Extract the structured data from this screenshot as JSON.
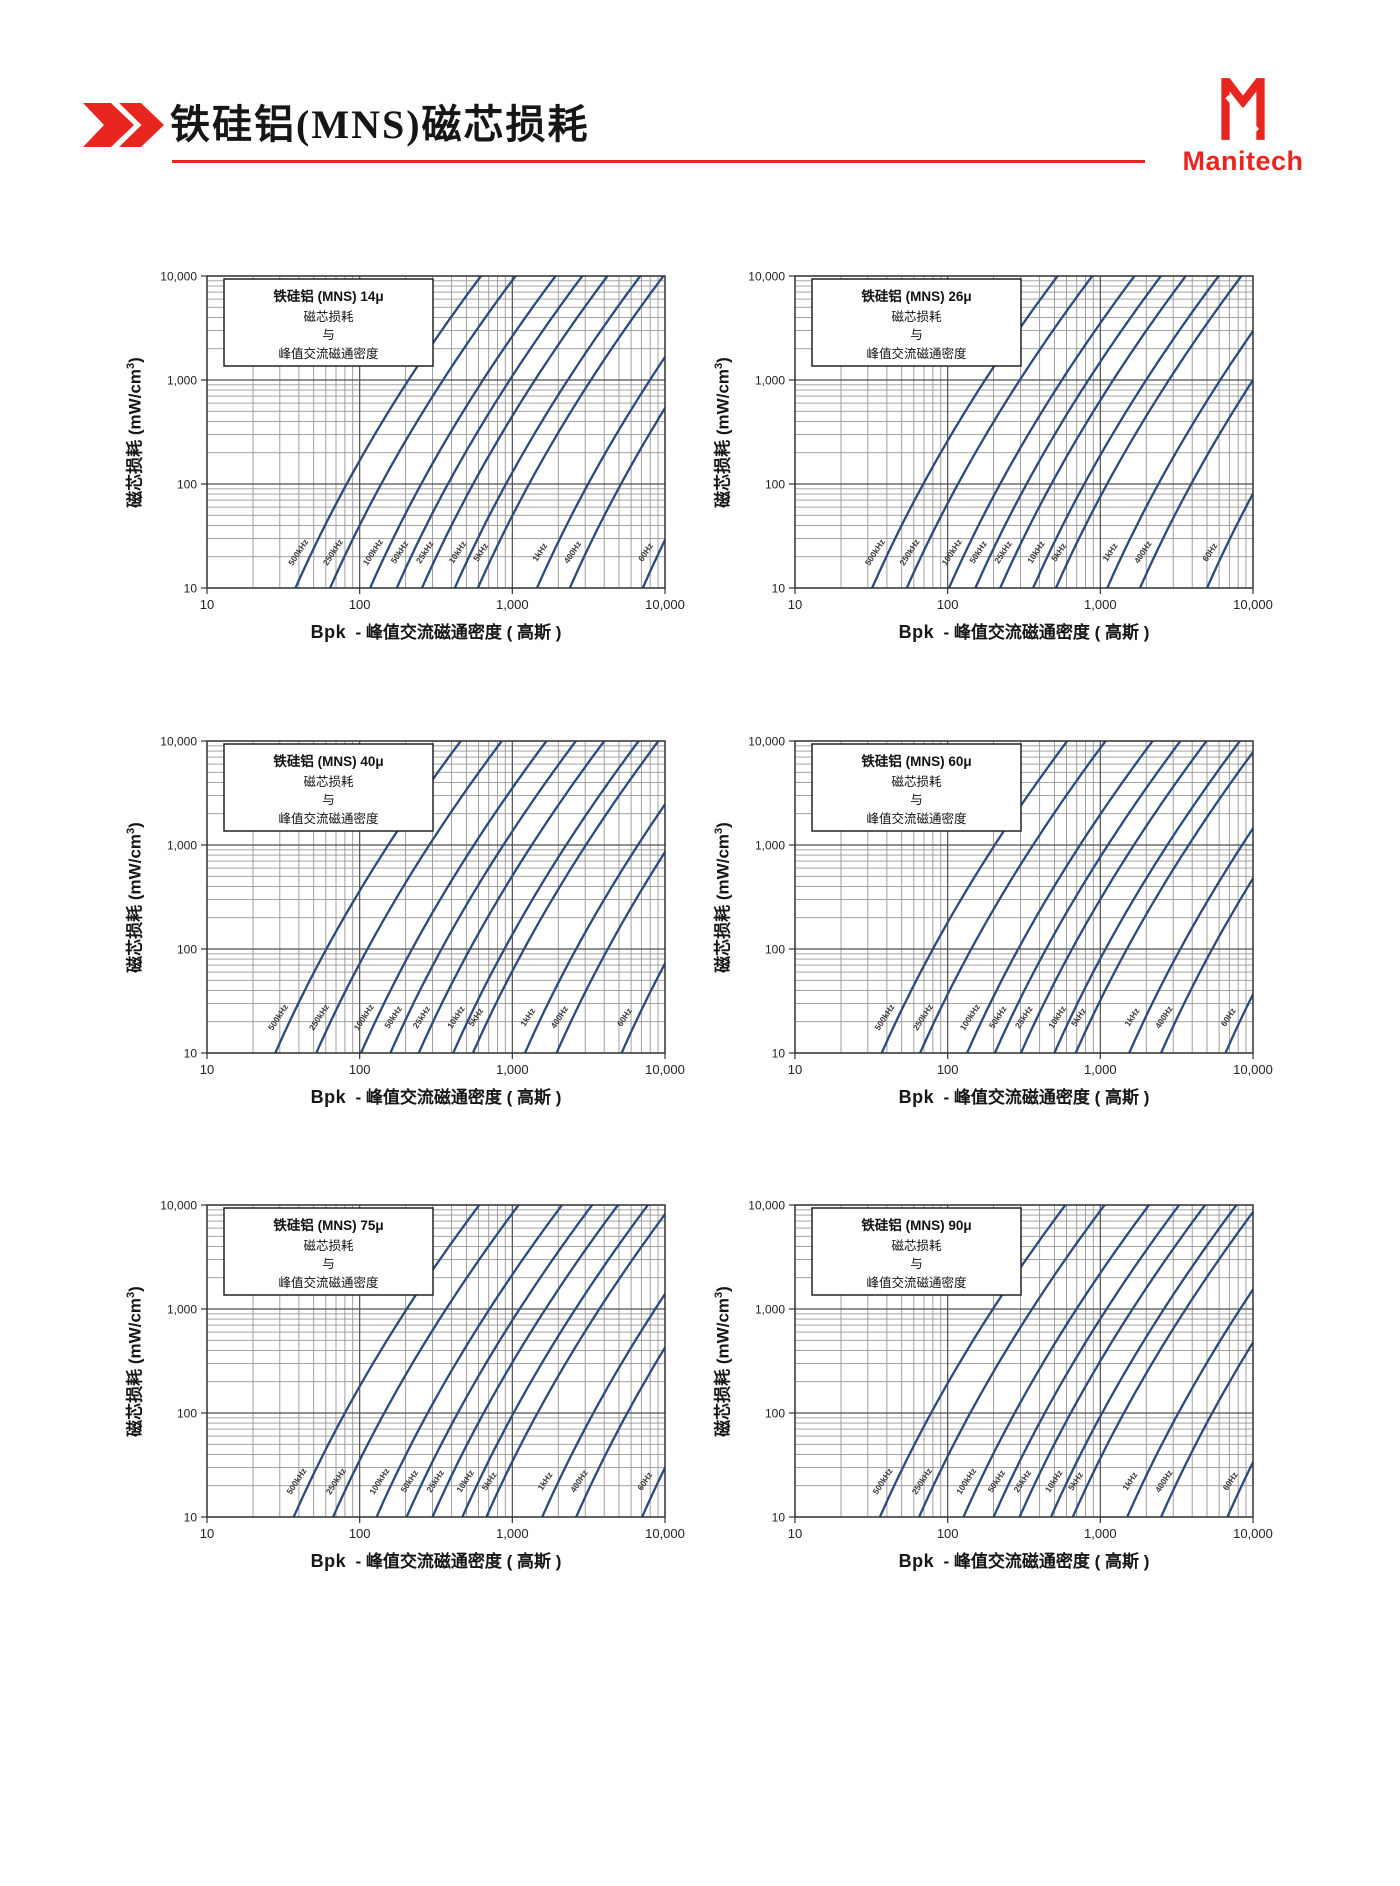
{
  "header": {
    "title": "铁硅铝(MNS)磁芯损耗",
    "brand": "Manitech"
  },
  "axes": {
    "scale": "log-log",
    "x_label_bpk": "Bpk",
    "x_label_rest": "- 峰值交流磁通密度 ( 高斯 )",
    "y_label": "磁芯损耗 (mW/cm³)",
    "y_label_cn": "磁芯损耗",
    "y_label_unit_pre": "(mW/cm",
    "y_label_unit_sup": "3",
    "y_label_unit_post": ")",
    "x_ticks": [
      "10",
      "100",
      "1,000",
      "10,000"
    ],
    "y_ticks": [
      "10",
      "100",
      "1,000",
      "10,000"
    ],
    "x_range_gauss": [
      10,
      10000
    ],
    "y_range_mw_cm3": [
      10,
      10000
    ]
  },
  "title_box_lines": [
    "磁芯损耗",
    "与",
    "峰值交流磁通密度"
  ],
  "curve_model": {
    "note": "straight-ish power-law curves on log-log axes; logB = log10(B_gauss_at_P10) + 0.30*(logP-1) + 0.035*(logP-1)^2 for P in mW/cm3 from 10 to 10,000"
  },
  "chart_data": [
    {
      "type": "line",
      "mu": "14μ",
      "title_line1": "铁硅铝 (MNS)  14μ",
      "series": [
        {
          "freq": "500kHz",
          "B_gauss_at_P10": 38
        },
        {
          "freq": "250kHz",
          "B_gauss_at_P10": 64
        },
        {
          "freq": "100kHz",
          "B_gauss_at_P10": 117
        },
        {
          "freq": "50kHz",
          "B_gauss_at_P10": 175
        },
        {
          "freq": "25kHz",
          "B_gauss_at_P10": 256
        },
        {
          "freq": "10kHz",
          "B_gauss_at_P10": 420
        },
        {
          "freq": "5kHz",
          "B_gauss_at_P10": 595
        },
        {
          "freq": "1kHz",
          "B_gauss_at_P10": 1450
        },
        {
          "freq": "400Hz",
          "B_gauss_at_P10": 2380
        },
        {
          "freq": "60Hz",
          "B_gauss_at_P10": 7150
        }
      ]
    },
    {
      "type": "line",
      "mu": "26μ",
      "title_line1": "铁硅铝 (MNS)  26μ",
      "series": [
        {
          "freq": "500kHz",
          "B_gauss_at_P10": 32
        },
        {
          "freq": "250kHz",
          "B_gauss_at_P10": 54
        },
        {
          "freq": "100kHz",
          "B_gauss_at_P10": 102
        },
        {
          "freq": "50kHz",
          "B_gauss_at_P10": 152
        },
        {
          "freq": "25kHz",
          "B_gauss_at_P10": 221
        },
        {
          "freq": "10kHz",
          "B_gauss_at_P10": 363
        },
        {
          "freq": "5kHz",
          "B_gauss_at_P10": 512
        },
        {
          "freq": "1kHz",
          "B_gauss_at_P10": 1110
        },
        {
          "freq": "400Hz",
          "B_gauss_at_P10": 1820
        },
        {
          "freq": "60Hz",
          "B_gauss_at_P10": 5000
        }
      ]
    },
    {
      "type": "line",
      "mu": "40μ",
      "title_line1": "铁硅铝 (MNS)  40μ",
      "series": [
        {
          "freq": "500kHz",
          "B_gauss_at_P10": 28
        },
        {
          "freq": "250kHz",
          "B_gauss_at_P10": 52
        },
        {
          "freq": "100kHz",
          "B_gauss_at_P10": 102
        },
        {
          "freq": "50kHz",
          "B_gauss_at_P10": 159
        },
        {
          "freq": "25kHz",
          "B_gauss_at_P10": 244
        },
        {
          "freq": "10kHz",
          "B_gauss_at_P10": 410
        },
        {
          "freq": "5kHz",
          "B_gauss_at_P10": 552
        },
        {
          "freq": "1kHz",
          "B_gauss_at_P10": 1210
        },
        {
          "freq": "400Hz",
          "B_gauss_at_P10": 1950
        },
        {
          "freq": "60Hz",
          "B_gauss_at_P10": 5200
        }
      ]
    },
    {
      "type": "line",
      "mu": "60μ",
      "title_line1": "铁硅铝 (MNS)  60μ",
      "series": [
        {
          "freq": "500kHz",
          "B_gauss_at_P10": 37
        },
        {
          "freq": "250kHz",
          "B_gauss_at_P10": 66
        },
        {
          "freq": "100kHz",
          "B_gauss_at_P10": 134
        },
        {
          "freq": "50kHz",
          "B_gauss_at_P10": 204
        },
        {
          "freq": "25kHz",
          "B_gauss_at_P10": 302
        },
        {
          "freq": "10kHz",
          "B_gauss_at_P10": 500
        },
        {
          "freq": "5kHz",
          "B_gauss_at_P10": 690
        },
        {
          "freq": "1kHz",
          "B_gauss_at_P10": 1545
        },
        {
          "freq": "400Hz",
          "B_gauss_at_P10": 2500
        },
        {
          "freq": "60Hz",
          "B_gauss_at_P10": 6600
        }
      ]
    },
    {
      "type": "line",
      "mu": "75μ",
      "title_line1": "铁硅铝 (MNS)  75μ",
      "series": [
        {
          "freq": "500kHz",
          "B_gauss_at_P10": 37
        },
        {
          "freq": "250kHz",
          "B_gauss_at_P10": 67
        },
        {
          "freq": "100kHz",
          "B_gauss_at_P10": 129
        },
        {
          "freq": "50kHz",
          "B_gauss_at_P10": 203
        },
        {
          "freq": "25kHz",
          "B_gauss_at_P10": 300
        },
        {
          "freq": "10kHz",
          "B_gauss_at_P10": 471
        },
        {
          "freq": "5kHz",
          "B_gauss_at_P10": 676
        },
        {
          "freq": "1kHz",
          "B_gauss_at_P10": 1570
        },
        {
          "freq": "400Hz",
          "B_gauss_at_P10": 2620
        },
        {
          "freq": "60Hz",
          "B_gauss_at_P10": 7080
        }
      ]
    },
    {
      "type": "line",
      "mu": "90μ",
      "title_line1": "铁硅铝 (MNS)  90μ",
      "series": [
        {
          "freq": "500kHz",
          "B_gauss_at_P10": 36
        },
        {
          "freq": "250kHz",
          "B_gauss_at_P10": 65
        },
        {
          "freq": "100kHz",
          "B_gauss_at_P10": 127
        },
        {
          "freq": "50kHz",
          "B_gauss_at_P10": 200
        },
        {
          "freq": "25kHz",
          "B_gauss_at_P10": 296
        },
        {
          "freq": "10kHz",
          "B_gauss_at_P10": 475
        },
        {
          "freq": "5kHz",
          "B_gauss_at_P10": 660
        },
        {
          "freq": "1kHz",
          "B_gauss_at_P10": 1500
        },
        {
          "freq": "400Hz",
          "B_gauss_at_P10": 2500
        },
        {
          "freq": "60Hz",
          "B_gauss_at_P10": 6800
        }
      ]
    }
  ],
  "colors": {
    "accent_red": "#e8251f",
    "curve_blue": "#2b4a80",
    "grid_minor": "#969696",
    "grid_major": "#4f4f4f",
    "text": "#161616"
  }
}
